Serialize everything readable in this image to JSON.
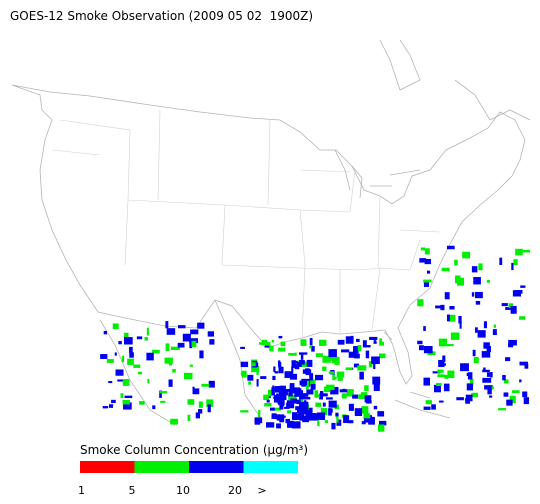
{
  "title": "GOES-12 Smoke Observation (2009 05 02  1900Z)",
  "legend": {
    "title": "Smoke Column Concentration (μg/m³)",
    "colors": [
      "#ff0000",
      "#00ee00",
      "#0000ee",
      "#00ffff"
    ],
    "ticks": [
      "1",
      "5",
      "10",
      "20",
      ">"
    ]
  }
}
